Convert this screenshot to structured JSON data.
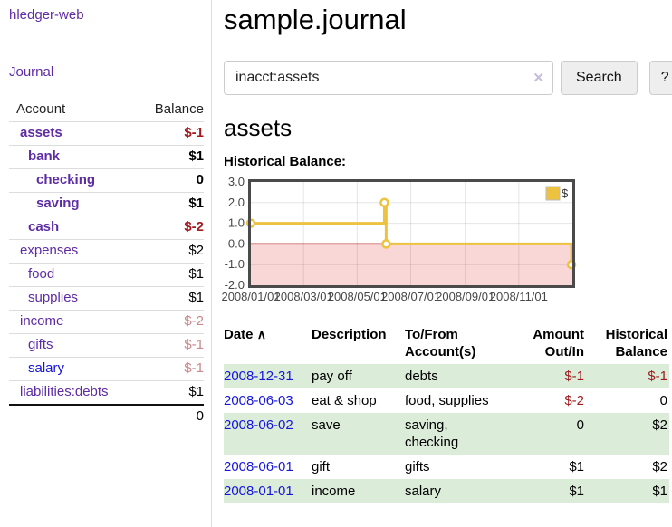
{
  "sidebar": {
    "brand": "hledger-web",
    "journal": "Journal",
    "accounts": {
      "account_header": "Account",
      "balance_header": "Balance",
      "rows": [
        {
          "name": "assets",
          "level": 1,
          "bold": true,
          "balance": "$-1",
          "negative": "strong"
        },
        {
          "name": "bank",
          "level": 2,
          "bold": true,
          "balance": "$1",
          "negative": null
        },
        {
          "name": "checking",
          "level": 3,
          "bold": true,
          "balance": "0",
          "negative": null
        },
        {
          "name": "saving",
          "level": 3,
          "bold": true,
          "balance": "$1",
          "negative": null
        },
        {
          "name": "cash",
          "level": 2,
          "bold": true,
          "balance": "$-2",
          "negative": "strong"
        },
        {
          "name": "expenses",
          "level": 1,
          "bold": false,
          "balance": "$2",
          "negative": null
        },
        {
          "name": "food",
          "level": 2,
          "bold": false,
          "balance": "$1",
          "negative": null
        },
        {
          "name": "supplies",
          "level": 2,
          "bold": false,
          "balance": "$1",
          "negative": null
        },
        {
          "name": "income",
          "level": 1,
          "bold": false,
          "balance": "$-2",
          "negative": "weak"
        },
        {
          "name": "gifts",
          "level": 2,
          "bold": false,
          "balance": "$-1",
          "negative": "weak"
        },
        {
          "name": "salary",
          "level": 2,
          "bold": false,
          "balance": "$-1",
          "negative": "weak",
          "unvisited": true
        },
        {
          "name": "liabilities:debts",
          "level": 1,
          "bold": false,
          "balance": "$1",
          "negative": null
        }
      ],
      "total": "0"
    }
  },
  "main": {
    "title": "sample.journal",
    "account_heading": "assets"
  },
  "search": {
    "value": "inacct:assets",
    "clear_icon": "✕",
    "button_label": "Search",
    "help_label": "?"
  },
  "chart_data": {
    "type": "line",
    "step": true,
    "title": "Historical Balance:",
    "legend": [
      {
        "label": "$",
        "color": "#edc240"
      }
    ],
    "legend_position": "top-right",
    "grid": true,
    "series": [
      {
        "name": "$",
        "color": "#edc240",
        "points": [
          {
            "date": "2008-01-01",
            "day": 0,
            "value": 1
          },
          {
            "date": "2008-06-01",
            "day": 152,
            "value": 2
          },
          {
            "date": "2008-06-03",
            "day": 154,
            "value": 0
          },
          {
            "date": "2008-12-31",
            "day": 365,
            "value": -1
          }
        ]
      }
    ],
    "x_ticks": [
      {
        "day": 0,
        "label": "2008/01/01"
      },
      {
        "day": 60,
        "label": "2008/03/01"
      },
      {
        "day": 121,
        "label": "2008/05/01"
      },
      {
        "day": 182,
        "label": "2008/07/01"
      },
      {
        "day": 244,
        "label": "2008/09/01"
      },
      {
        "day": 305,
        "label": "2008/11/01"
      }
    ],
    "y_ticks": [
      "3.0",
      "2.0",
      "1.0",
      "0.0",
      "-1.0",
      "-2.0"
    ],
    "xlim_days": [
      0,
      366
    ],
    "ylim": [
      -2,
      3
    ],
    "negative_region_fill": "#fad7d7",
    "zero_line_color": "#aa1111",
    "plot_border_color": "#4a4a4a"
  },
  "register": {
    "columns": {
      "date": "Date",
      "description": "Description",
      "accounts": "To/From Account(s)",
      "amount": "Amount Out/In",
      "balance": "Historical Balance"
    },
    "sort_icon": "∧",
    "rows": [
      {
        "date": "2008-12-31",
        "description": "pay off",
        "accounts": "debts",
        "amount": "$-1",
        "amount_negative": true,
        "balance": "$-1",
        "balance_negative": true
      },
      {
        "date": "2008-06-03",
        "description": "eat & shop",
        "accounts": "food, supplies",
        "amount": "$-2",
        "amount_negative": true,
        "balance": "0",
        "balance_negative": false
      },
      {
        "date": "2008-06-02",
        "description": "save",
        "accounts": "saving, checking",
        "amount": "0",
        "amount_negative": false,
        "balance": "$2",
        "balance_negative": false
      },
      {
        "date": "2008-06-01",
        "description": "gift",
        "accounts": "gifts",
        "amount": "$1",
        "amount_negative": false,
        "balance": "$2",
        "balance_negative": false
      },
      {
        "date": "2008-01-01",
        "description": "income",
        "accounts": "salary",
        "amount": "$1",
        "amount_negative": false,
        "balance": "$1",
        "balance_negative": false
      }
    ]
  },
  "colors": {
    "link_purple": "#5e2ca5",
    "link_blue": "#1515dd",
    "negative_strong": "#9e1b1e",
    "negative_weak": "#c9898d",
    "row_stripe_green": "#dbecd8",
    "chart_line_yellow": "#edc240",
    "chart_negative_pink": "#fad7d7",
    "chart_zero_red": "#aa1111",
    "button_bg": "#eeeeee"
  }
}
